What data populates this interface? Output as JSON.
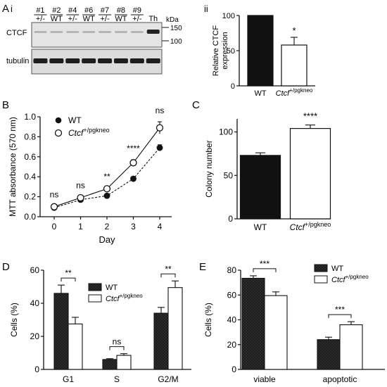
{
  "panel_labels": {
    "A": "A",
    "ai": "i",
    "aii": "ii",
    "B": "B",
    "C": "C",
    "D": "D",
    "E": "E"
  },
  "blot": {
    "lanes": [
      {
        "num": "#1",
        "geno": "+/-"
      },
      {
        "num": "#2",
        "geno": "WT"
      },
      {
        "num": "#4",
        "geno": "+/-"
      },
      {
        "num": "#6",
        "geno": "WT"
      },
      {
        "num": "#7",
        "geno": "+/-"
      },
      {
        "num": "#8",
        "geno": "WT"
      },
      {
        "num": "#9",
        "geno": "+/-"
      },
      {
        "num": "",
        "geno": "Th"
      }
    ],
    "row_labels": [
      "CTCF",
      "tubulin"
    ],
    "kda_label": "kDa",
    "markers": [
      "150",
      "100"
    ]
  },
  "chart_data": [
    {
      "id": "Aii",
      "type": "bar",
      "categories": [
        "WT",
        "Ctcf +/pgkneo"
      ],
      "category_parts": [
        {
          "text": "WT",
          "sup": ""
        },
        {
          "text": "Ctcf",
          "sup": "+/pgkneo"
        }
      ],
      "values": [
        100,
        58
      ],
      "errors": [
        0,
        11
      ],
      "fills": [
        "#111111",
        "#ffffff"
      ],
      "significance": [
        {
          "bar": 1,
          "label": "*"
        }
      ],
      "ylabel_lines": [
        "Relative CTCF",
        "expression"
      ],
      "ylim": [
        0,
        100
      ],
      "yticks": [
        0,
        50,
        100
      ],
      "title": "",
      "xlabel": ""
    },
    {
      "id": "B",
      "type": "line",
      "x": [
        0,
        1,
        2,
        3,
        4
      ],
      "series": [
        {
          "name": "WT",
          "label_parts": {
            "text": "WT",
            "sup": ""
          },
          "values": [
            0.09,
            0.17,
            0.21,
            0.38,
            0.69
          ],
          "errors": [
            0.01,
            0.01,
            0.01,
            0.01,
            0.03
          ],
          "marker": "filled",
          "line": "dashed"
        },
        {
          "name": "Ctcf +/pgkneo",
          "label_parts": {
            "text": "Ctcf",
            "sup": "+/pgkneo"
          },
          "values": [
            0.1,
            0.19,
            0.28,
            0.54,
            0.89
          ],
          "errors": [
            0.01,
            0.01,
            0.01,
            0.03,
            0.06
          ],
          "marker": "open",
          "line": "solid"
        }
      ],
      "significance": [
        "ns",
        "ns",
        "**",
        "****",
        "ns"
      ],
      "xlabel": "Day",
      "ylabel": "MTT absorbance (570 nm)",
      "ylim": [
        0,
        1.0
      ],
      "yticks": [
        "0.0",
        "0.2",
        "0.4",
        "0.6",
        "0.8",
        "1.0"
      ],
      "xticks": [
        "0",
        "1",
        "2",
        "3",
        "4"
      ],
      "legend": "top-left",
      "title": ""
    },
    {
      "id": "C",
      "type": "bar",
      "categories": [
        "WT",
        "Ctcf +/pgkneo"
      ],
      "category_parts": [
        {
          "text": "WT",
          "sup": ""
        },
        {
          "text": "Ctcf",
          "sup": "+/pgkneo"
        }
      ],
      "values": [
        73,
        104
      ],
      "errors": [
        3,
        4
      ],
      "fills": [
        "#111111",
        "#ffffff"
      ],
      "significance": [
        {
          "bar": 1,
          "label": "****"
        }
      ],
      "ylabel": "Colony number",
      "ylim": [
        0,
        115
      ],
      "yticks": [
        0,
        50,
        100
      ],
      "title": "",
      "xlabel": ""
    },
    {
      "id": "D",
      "type": "bar",
      "categories": [
        "G1",
        "S",
        "G2/M"
      ],
      "series": [
        {
          "name": "WT",
          "label_parts": {
            "text": "WT",
            "sup": ""
          },
          "values": [
            46,
            6,
            34
          ],
          "errors": [
            5,
            0.5,
            3.5
          ],
          "fill": "#1c1c1c"
        },
        {
          "name": "Ctcf +/pgkneo",
          "label_parts": {
            "text": "Ctcf",
            "sup": "+/pgkneo"
          },
          "values": [
            27.5,
            8.5,
            49.5
          ],
          "errors": [
            4,
            1,
            4
          ],
          "fill": "#ffffff"
        }
      ],
      "significance": [
        "**",
        "ns",
        "**"
      ],
      "ylabel": "Cells (%)",
      "ylim": [
        0,
        60
      ],
      "yticks": [
        0,
        20,
        40,
        60
      ],
      "legend": "top-center",
      "title": "",
      "xlabel": ""
    },
    {
      "id": "E",
      "type": "bar",
      "categories": [
        "viable",
        "apoptotic"
      ],
      "series": [
        {
          "name": "WT",
          "label_parts": {
            "text": "WT",
            "sup": ""
          },
          "values": [
            73.5,
            24
          ],
          "errors": [
            2,
            2
          ],
          "fill": "#1c1c1c"
        },
        {
          "name": "Ctcf +/pgkneo",
          "label_parts": {
            "text": "Ctcf",
            "sup": "+/pgkneo"
          },
          "values": [
            59.5,
            36
          ],
          "errors": [
            3,
            2.5
          ],
          "fill": "#ffffff"
        }
      ],
      "significance": [
        "***",
        "***"
      ],
      "ylabel": "Cells (%)",
      "ylim": [
        0,
        80
      ],
      "yticks": [
        0,
        20,
        40,
        60,
        80
      ],
      "legend": "top-right",
      "title": "",
      "xlabel": ""
    }
  ]
}
